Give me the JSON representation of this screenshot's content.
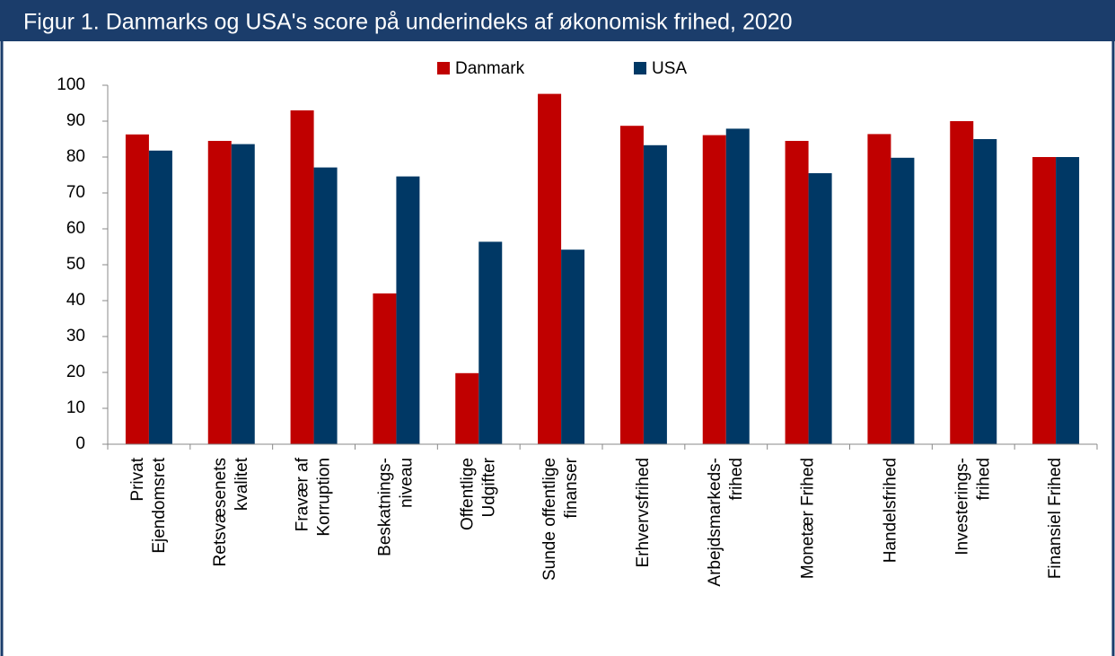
{
  "chart_data": {
    "type": "bar",
    "title": "Figur 1. Danmarks og USA's score på underindeks af økonomisk frihed, 2020",
    "categories": [
      "Privat\nEjendomsret",
      "Retsvæsenets\nkvalitet",
      "Fravær af\nKorruption",
      "Beskatnings-\nniveau",
      "Offentlige\nUdgifter",
      "Sunde offentlige\nfinanser",
      "Erhvervsfrihed",
      "Arbejdsmarkeds-\nfrihed",
      "Monetær Frihed",
      "Handelsfrihed",
      "Investerings-\nfrihed",
      "Finansiel Frihed"
    ],
    "series": [
      {
        "name": "Danmark",
        "color": "#c00000",
        "values": [
          86.3,
          84.5,
          93,
          42,
          19.8,
          97.6,
          88.7,
          86.1,
          84.5,
          86.4,
          90,
          80
        ]
      },
      {
        "name": "USA",
        "color": "#003865",
        "values": [
          81.8,
          83.6,
          77.1,
          74.6,
          56.4,
          54.2,
          83.3,
          87.9,
          75.5,
          79.8,
          85,
          80
        ]
      }
    ],
    "ylim": [
      0,
      100
    ],
    "yticks": [
      0,
      10,
      20,
      30,
      40,
      50,
      60,
      70,
      80,
      90,
      100
    ],
    "grid": false
  }
}
